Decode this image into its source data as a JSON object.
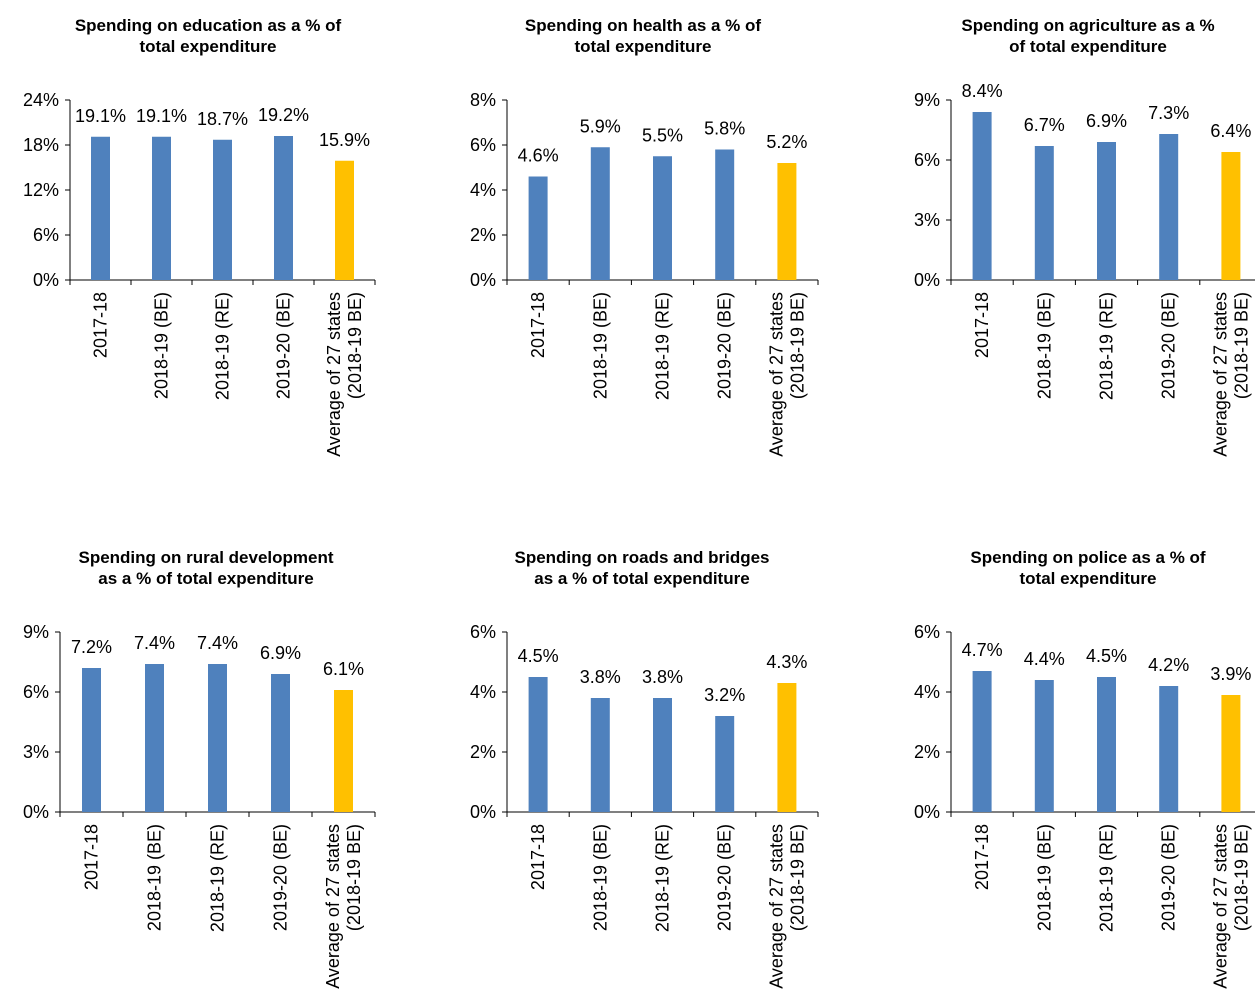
{
  "chart_data": [
    {
      "type": "bar",
      "title": [
        "Spending on education as a % of",
        "total expenditure"
      ],
      "categories": [
        [
          "2017-18"
        ],
        [
          "2018-19 (BE)"
        ],
        [
          "2018-19 (RE)"
        ],
        [
          "2019-20 (BE)"
        ],
        [
          "Average of 27 states",
          "(2018-19 BE)"
        ]
      ],
      "values": [
        19.1,
        19.1,
        18.7,
        19.2,
        15.9
      ],
      "value_labels": [
        "19.1%",
        "19.1%",
        "18.7%",
        "19.2%",
        "15.9%"
      ],
      "bar_colors": [
        "#4f81bd",
        "#4f81bd",
        "#4f81bd",
        "#4f81bd",
        "#ffc000"
      ],
      "yticks": [
        "0%",
        "6%",
        "12%",
        "18%",
        "24%"
      ],
      "ylim": [
        0,
        24
      ],
      "grid": false,
      "legend": false
    },
    {
      "type": "bar",
      "title": [
        "Spending on health as a % of",
        "total expenditure"
      ],
      "categories": [
        [
          "2017-18"
        ],
        [
          "2018-19 (BE)"
        ],
        [
          "2018-19 (RE)"
        ],
        [
          "2019-20 (BE)"
        ],
        [
          "Average of 27 states",
          "(2018-19 BE)"
        ]
      ],
      "values": [
        4.6,
        5.9,
        5.5,
        5.8,
        5.2
      ],
      "value_labels": [
        "4.6%",
        "5.9%",
        "5.5%",
        "5.8%",
        "5.2%"
      ],
      "bar_colors": [
        "#4f81bd",
        "#4f81bd",
        "#4f81bd",
        "#4f81bd",
        "#ffc000"
      ],
      "yticks": [
        "0%",
        "2%",
        "4%",
        "6%",
        "8%"
      ],
      "ylim": [
        0,
        8
      ],
      "grid": false,
      "legend": false
    },
    {
      "type": "bar",
      "title": [
        "Spending on agriculture as a %",
        "of total expenditure"
      ],
      "categories": [
        [
          "2017-18"
        ],
        [
          "2018-19 (BE)"
        ],
        [
          "2018-19 (RE)"
        ],
        [
          "2019-20 (BE)"
        ],
        [
          "Average of 27 states",
          "(2018-19 BE)"
        ]
      ],
      "values": [
        8.4,
        6.7,
        6.9,
        7.3,
        6.4
      ],
      "value_labels": [
        "8.4%",
        "6.7%",
        "6.9%",
        "7.3%",
        "6.4%"
      ],
      "bar_colors": [
        "#4f81bd",
        "#4f81bd",
        "#4f81bd",
        "#4f81bd",
        "#ffc000"
      ],
      "yticks": [
        "0%",
        "3%",
        "6%",
        "9%"
      ],
      "ylim": [
        0,
        9
      ],
      "grid": false,
      "legend": false
    },
    {
      "type": "bar",
      "title": [
        "Spending on rural development",
        "as a % of total expenditure"
      ],
      "categories": [
        [
          "2017-18"
        ],
        [
          "2018-19 (BE)"
        ],
        [
          "2018-19 (RE)"
        ],
        [
          "2019-20 (BE)"
        ],
        [
          "Average of 27 states",
          "(2018-19 BE)"
        ]
      ],
      "values": [
        7.2,
        7.4,
        7.4,
        6.9,
        6.1
      ],
      "value_labels": [
        "7.2%",
        "7.4%",
        "7.4%",
        "6.9%",
        "6.1%"
      ],
      "bar_colors": [
        "#4f81bd",
        "#4f81bd",
        "#4f81bd",
        "#4f81bd",
        "#ffc000"
      ],
      "yticks": [
        "0%",
        "3%",
        "6%",
        "9%"
      ],
      "ylim": [
        0,
        9
      ],
      "grid": false,
      "legend": false
    },
    {
      "type": "bar",
      "title": [
        "Spending on roads and bridges",
        "as a % of total expenditure"
      ],
      "categories": [
        [
          "2017-18"
        ],
        [
          "2018-19 (BE)"
        ],
        [
          "2018-19 (RE)"
        ],
        [
          "2019-20 (BE)"
        ],
        [
          "Average of 27 states",
          "(2018-19 BE)"
        ]
      ],
      "values": [
        4.5,
        3.8,
        3.8,
        3.2,
        4.3
      ],
      "value_labels": [
        "4.5%",
        "3.8%",
        "3.8%",
        "3.2%",
        "4.3%"
      ],
      "bar_colors": [
        "#4f81bd",
        "#4f81bd",
        "#4f81bd",
        "#4f81bd",
        "#ffc000"
      ],
      "yticks": [
        "0%",
        "2%",
        "4%",
        "6%"
      ],
      "ylim": [
        0,
        6
      ],
      "grid": false,
      "legend": false
    },
    {
      "type": "bar",
      "title": [
        "Spending on police as a % of",
        "total expenditure"
      ],
      "categories": [
        [
          "2017-18"
        ],
        [
          "2018-19 (BE)"
        ],
        [
          "2018-19 (RE)"
        ],
        [
          "2019-20 (BE)"
        ],
        [
          "Average of 27 states",
          "(2018-19 BE)"
        ]
      ],
      "values": [
        4.7,
        4.4,
        4.5,
        4.2,
        3.9
      ],
      "value_labels": [
        "4.7%",
        "4.4%",
        "4.5%",
        "4.2%",
        "3.9%"
      ],
      "bar_colors": [
        "#4f81bd",
        "#4f81bd",
        "#4f81bd",
        "#4f81bd",
        "#ffc000"
      ],
      "yticks": [
        "0%",
        "2%",
        "4%",
        "6%"
      ],
      "ylim": [
        0,
        6
      ],
      "grid": false,
      "legend": false
    }
  ]
}
